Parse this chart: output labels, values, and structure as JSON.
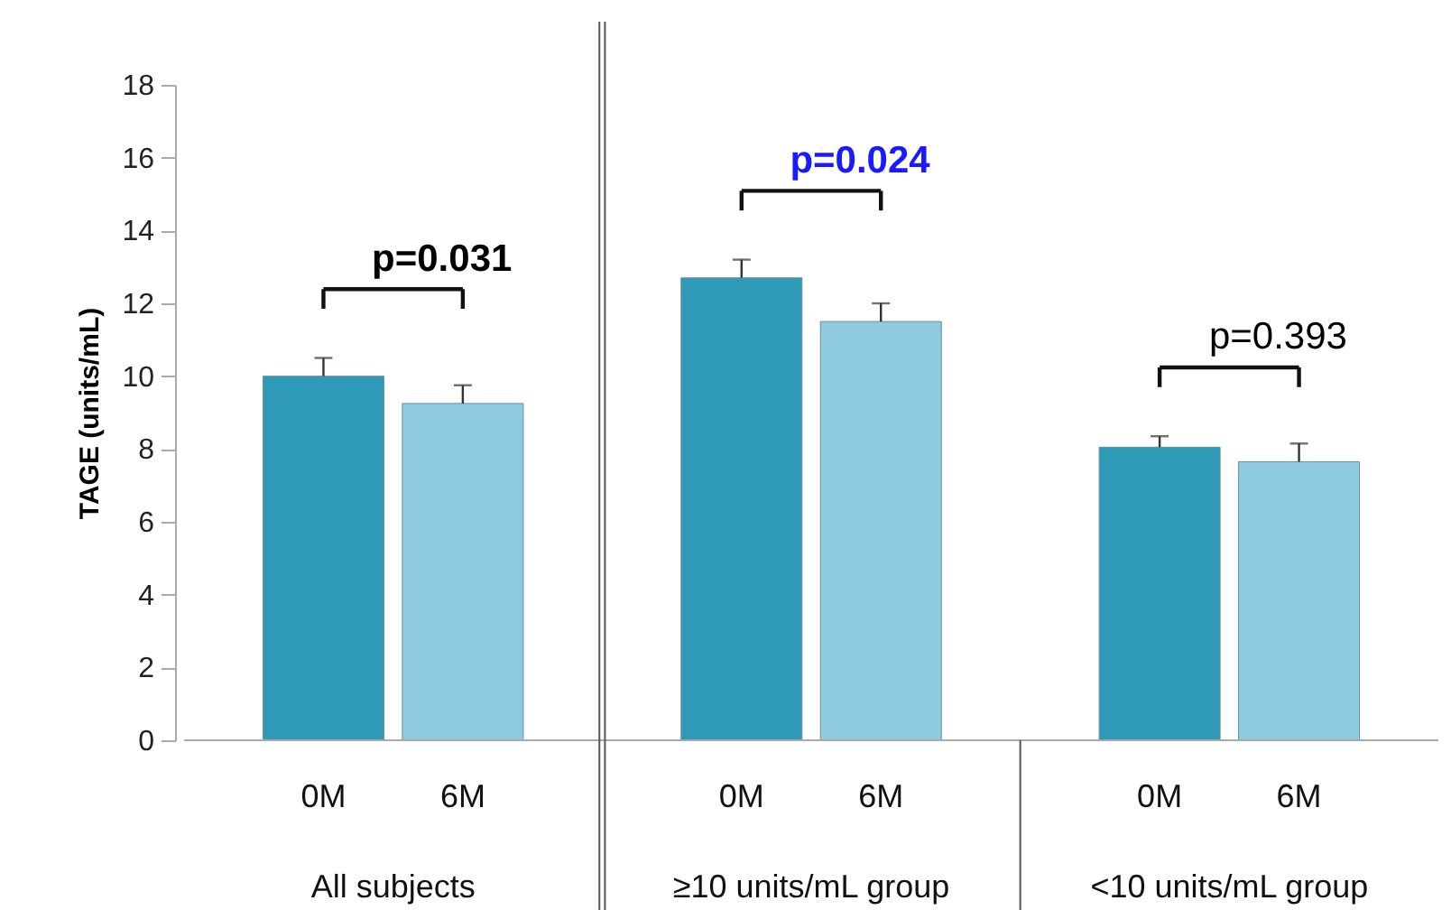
{
  "chart_data": {
    "type": "bar",
    "ylabel": "TAGE (units/mL)",
    "categories": [
      "0M",
      "6M",
      "0M",
      "6M",
      "0M",
      "6M"
    ],
    "values": [
      10.0,
      9.25,
      12.7,
      11.5,
      8.05,
      7.65
    ],
    "errors": [
      [
        10.0,
        10.5
      ],
      [
        9.25,
        9.75
      ],
      [
        12.7,
        13.2
      ],
      [
        11.5,
        12.0
      ],
      [
        8.05,
        8.35
      ],
      [
        7.65,
        8.15
      ]
    ],
    "colors": [
      "#2e9ab8",
      "#8ecae0",
      "#2e9ab8",
      "#8ecae0",
      "#2e9ab8",
      "#8ecae0"
    ],
    "ylim": [
      0,
      18
    ],
    "yticks": [
      0,
      2,
      4,
      6,
      8,
      10,
      12,
      14,
      16,
      18
    ],
    "grid": false,
    "annotations": [
      "p=0.031",
      "p=0.024",
      "p=0.393",
      "All subjects",
      "≥10 units/mL group",
      "<10 units/mL group"
    ]
  }
}
